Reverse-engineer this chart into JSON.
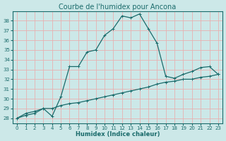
{
  "title": "Courbe de l'humidex pour Ancona",
  "xlabel": "Humidex (Indice chaleur)",
  "bg_color": "#cce8e8",
  "plot_bg_color": "#cce8e8",
  "grid_color": "#e8b0b0",
  "line_color": "#1a6b6b",
  "spine_color": "#1a6b6b",
  "title_color": "#1a6b6b",
  "xlim": [
    -0.5,
    23.5
  ],
  "ylim": [
    27.5,
    39.0
  ],
  "yticks": [
    28,
    29,
    30,
    31,
    32,
    33,
    34,
    35,
    36,
    37,
    38
  ],
  "xticks": [
    0,
    1,
    2,
    3,
    4,
    5,
    6,
    7,
    8,
    9,
    10,
    11,
    12,
    13,
    14,
    15,
    16,
    17,
    18,
    19,
    20,
    21,
    22,
    23
  ],
  "line1_x": [
    0,
    1,
    2,
    3,
    4,
    5,
    6,
    7,
    8,
    9,
    10,
    11,
    12,
    13,
    14,
    15,
    16,
    17,
    18,
    19,
    20,
    21,
    22,
    23
  ],
  "line1_y": [
    28.0,
    28.5,
    28.7,
    29.0,
    28.2,
    30.2,
    33.3,
    33.3,
    34.8,
    35.0,
    36.5,
    37.2,
    38.5,
    38.3,
    38.7,
    37.2,
    35.7,
    32.3,
    32.1,
    32.5,
    32.8,
    33.2,
    33.3,
    32.5
  ],
  "line2_x": [
    0,
    1,
    2,
    3,
    4,
    5,
    6,
    7,
    8,
    9,
    10,
    11,
    12,
    13,
    14,
    15,
    16,
    17,
    18,
    19,
    20,
    21,
    22,
    23
  ],
  "line2_y": [
    28.0,
    28.3,
    28.5,
    29.0,
    29.0,
    29.3,
    29.5,
    29.6,
    29.8,
    30.0,
    30.2,
    30.4,
    30.6,
    30.8,
    31.0,
    31.2,
    31.5,
    31.7,
    31.8,
    32.0,
    32.0,
    32.2,
    32.3,
    32.5
  ],
  "title_fontsize": 7.0,
  "label_fontsize": 6.0,
  "tick_fontsize": 5.0
}
